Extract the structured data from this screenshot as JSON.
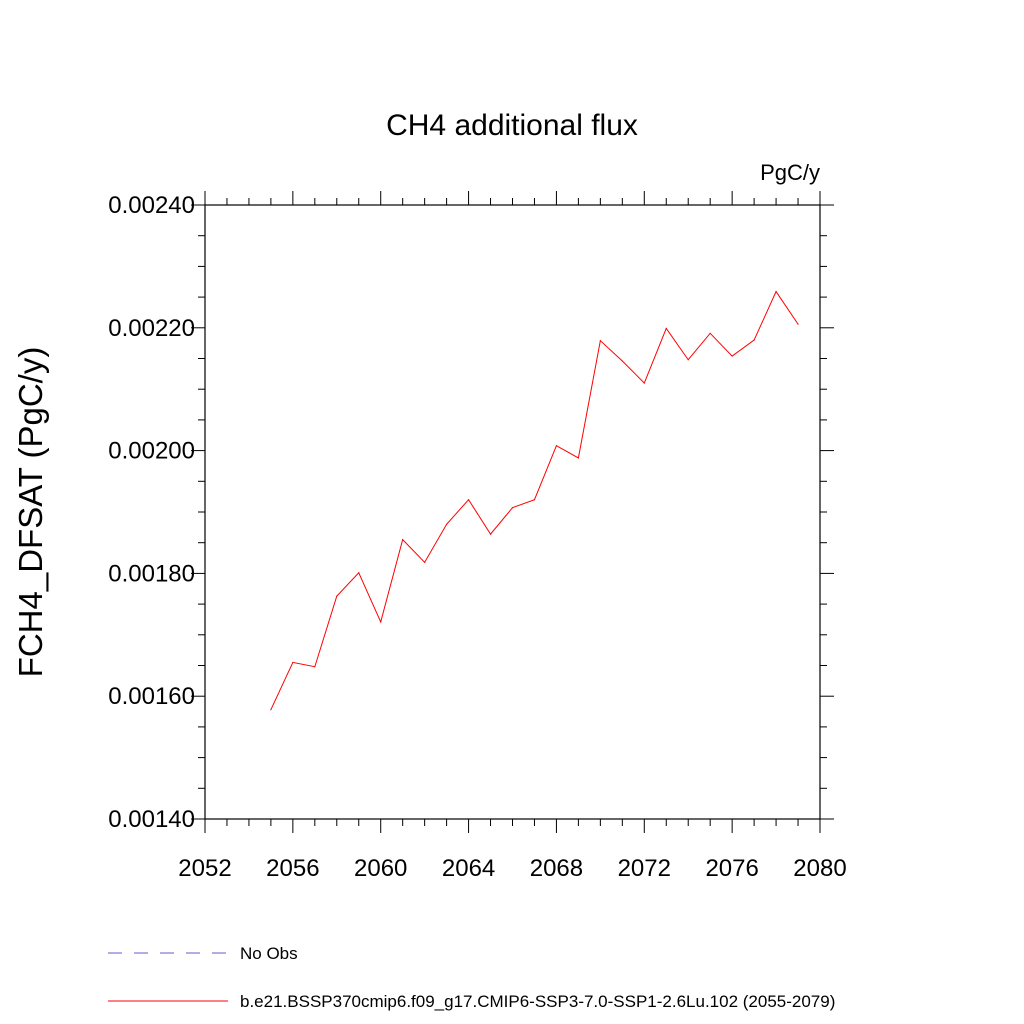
{
  "chart_data": {
    "type": "line",
    "title": "CH4 additional flux",
    "units_label": "PgC/y",
    "ylabel": "FCH4_DFSAT  (PgC/y)",
    "xlabel": "",
    "xlim": [
      2052,
      2080
    ],
    "ylim": [
      0.0014,
      0.0024
    ],
    "x_ticks": [
      2052,
      2056,
      2060,
      2064,
      2068,
      2072,
      2076,
      2080
    ],
    "x_tick_labels": [
      "2052",
      "2056",
      "2060",
      "2064",
      "2068",
      "2072",
      "2076",
      "2080"
    ],
    "y_ticks": [
      0.0014,
      0.0016,
      0.0018,
      0.002,
      0.0022,
      0.0024
    ],
    "y_tick_labels": [
      "0.00140",
      "0.00160",
      "0.00180",
      "0.00200",
      "0.00220",
      "0.00240"
    ],
    "grid": false,
    "legend_position": "bottom",
    "series": [
      {
        "name": "b.e21.BSSP370cmip6.f09_g17.CMIP6-SSP3-7.0-SSP1-2.6Lu.102 (2055-2079)",
        "color": "#ff0000",
        "style": "solid",
        "x": [
          2055,
          2056,
          2057,
          2058,
          2059,
          2060,
          2061,
          2062,
          2063,
          2064,
          2065,
          2066,
          2067,
          2068,
          2069,
          2070,
          2071,
          2072,
          2073,
          2074,
          2075,
          2076,
          2077,
          2078,
          2079
        ],
        "y": [
          0.001578,
          0.001655,
          0.001648,
          0.001763,
          0.001801,
          0.001721,
          0.001855,
          0.001818,
          0.00188,
          0.00192,
          0.001864,
          0.001907,
          0.00192,
          0.002008,
          0.001988,
          0.002179,
          0.002146,
          0.00211,
          0.002199,
          0.002148,
          0.002191,
          0.002154,
          0.00218,
          0.002259,
          0.002206
        ]
      }
    ],
    "legend": [
      {
        "label": "No Obs",
        "color": "#6a5acd",
        "style": "dashed"
      },
      {
        "label": "b.e21.BSSP370cmip6.f09_g17.CMIP6-SSP3-7.0-SSP1-2.6Lu.102 (2055-2079)",
        "color": "#ff0000",
        "style": "solid"
      }
    ]
  }
}
